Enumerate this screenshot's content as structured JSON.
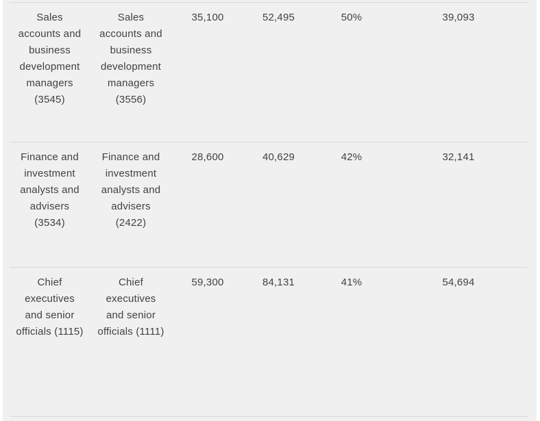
{
  "colors": {
    "background": "#f0f0f0",
    "divider": "#d9d9d9",
    "text": "#414142",
    "page_edge": "#ffffff"
  },
  "table": {
    "rows": [
      {
        "occupation_a": "Sales\naccounts and\nbusiness\ndevelopment\nmanagers\n(3545)",
        "occupation_b": "Sales\naccounts and\nbusiness\ndevelopment\nmanagers\n(3556)",
        "value_1": "35,100",
        "value_2": "52,495",
        "percent": "50%",
        "value_3": "39,093"
      },
      {
        "occupation_a": "Finance and\ninvestment\nanalysts and\nadvisers\n(3534)",
        "occupation_b": "Finance and\ninvestment\nanalysts and\nadvisers\n(2422)",
        "value_1": "28,600",
        "value_2": "40,629",
        "percent": "42%",
        "value_3": "32,141"
      },
      {
        "occupation_a": "Chief\nexecutives\nand senior\nofficials (1115)",
        "occupation_b": "Chief\nexecutives\nand senior\nofficials (1111)",
        "value_1": "59,300",
        "value_2": "84,131",
        "percent": "41%",
        "value_3": "54,694"
      }
    ]
  }
}
